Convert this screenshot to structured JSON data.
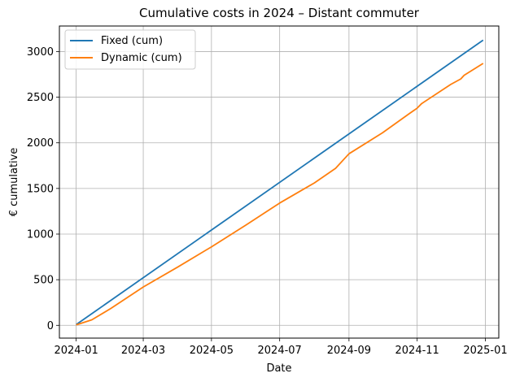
{
  "chart_data": {
    "type": "line",
    "title": "Cumulative costs in 2024 – Distant commuter",
    "xlabel": "Date",
    "ylabel": "€ cumulative",
    "xlim": [
      "2023-12-17",
      "2025-01-13"
    ],
    "ylim": [
      -140,
      3280
    ],
    "x_ticks": [
      {
        "date": "2024-01-01",
        "label": "2024-01"
      },
      {
        "date": "2024-03-01",
        "label": "2024-03"
      },
      {
        "date": "2024-05-01",
        "label": "2024-05"
      },
      {
        "date": "2024-07-01",
        "label": "2024-07"
      },
      {
        "date": "2024-09-01",
        "label": "2024-09"
      },
      {
        "date": "2024-11-01",
        "label": "2024-11"
      },
      {
        "date": "2025-01-01",
        "label": "2025-01"
      }
    ],
    "y_ticks": [
      0,
      500,
      1000,
      1500,
      2000,
      2500,
      3000
    ],
    "grid": true,
    "legend_position": "top-left",
    "series": [
      {
        "name": "Fixed (cum)",
        "color": "#1f77b4",
        "x": [
          "2024-01-01",
          "2024-12-30"
        ],
        "y": [
          8,
          3125
        ]
      },
      {
        "name": "Dynamic (cum)",
        "color": "#ff7f0e",
        "x": [
          "2024-01-01",
          "2024-01-15",
          "2024-02-01",
          "2024-03-01",
          "2024-04-01",
          "2024-05-01",
          "2024-06-01",
          "2024-07-01",
          "2024-08-01",
          "2024-08-20",
          "2024-09-01",
          "2024-10-01",
          "2024-10-25",
          "2024-11-01",
          "2024-11-05",
          "2024-12-01",
          "2024-12-10",
          "2024-12-13",
          "2024-12-30"
        ],
        "y": [
          5,
          60,
          185,
          420,
          640,
          860,
          1100,
          1340,
          1560,
          1720,
          1880,
          2110,
          2320,
          2380,
          2430,
          2640,
          2700,
          2740,
          2870
        ]
      }
    ]
  }
}
